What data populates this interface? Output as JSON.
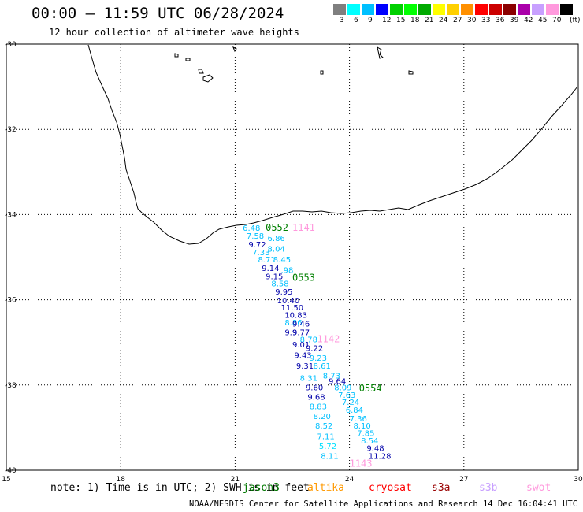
{
  "header": {
    "title": "00:00 – 11:59 UTC 06/28/2024",
    "subtitle": "12 hour collection of altimeter wave heights"
  },
  "legend": {
    "unit": "(ft)",
    "bins": [
      {
        "label": "",
        "color": "#7f7f7f"
      },
      {
        "label": "3",
        "color": "#00ffff"
      },
      {
        "label": "6",
        "color": "#00c0ff"
      },
      {
        "label": "9",
        "color": "#0000ff"
      },
      {
        "label": "12",
        "color": "#00d000"
      },
      {
        "label": "15",
        "color": "#00ff00"
      },
      {
        "label": "18",
        "color": "#00aa00"
      },
      {
        "label": "21",
        "color": "#ffff00"
      },
      {
        "label": "24",
        "color": "#ffd000"
      },
      {
        "label": "27",
        "color": "#ff9000"
      },
      {
        "label": "30",
        "color": "#ff0000"
      },
      {
        "label": "33",
        "color": "#cc0000"
      },
      {
        "label": "36",
        "color": "#8b0000"
      },
      {
        "label": "39",
        "color": "#aa00aa"
      },
      {
        "label": "42",
        "color": "#c8a0ff"
      },
      {
        "label": "45",
        "color": "#ff99dd"
      },
      {
        "label": "70",
        "color": "#000000"
      }
    ]
  },
  "axes": {
    "lat_labels": [
      "-30",
      "-32",
      "-34",
      "-36",
      "-38",
      "-40"
    ],
    "lon_labels": [
      "15",
      "18",
      "21",
      "24",
      "27",
      "30"
    ]
  },
  "map_data": {
    "lon_range": [
      15,
      30
    ],
    "lat_range": [
      -40,
      -30
    ],
    "pass_labels": [
      {
        "text": "0552",
        "lon": 21.8,
        "lat": -34.38,
        "color": "#008000"
      },
      {
        "text": "1141",
        "lon": 22.5,
        "lat": -34.38,
        "color": "#ff99dd"
      },
      {
        "text": "0553",
        "lon": 22.5,
        "lat": -35.55,
        "color": "#008000"
      },
      {
        "text": "1142",
        "lon": 23.15,
        "lat": -37.0,
        "color": "#ff99dd"
      },
      {
        "text": "0554",
        "lon": 24.25,
        "lat": -38.15,
        "color": "#008000"
      },
      {
        "text": "1143",
        "lon": 24.0,
        "lat": -39.92,
        "color": "#ff99dd"
      }
    ],
    "observations": [
      {
        "text": "6.48",
        "lon": 21.2,
        "lat": -34.38,
        "color": "#00c0ff"
      },
      {
        "text": "7.58",
        "lon": 21.3,
        "lat": -34.57,
        "color": "#00c0ff"
      },
      {
        "text": "6.86",
        "lon": 21.85,
        "lat": -34.62,
        "color": "#00c0ff"
      },
      {
        "text": "9.72",
        "lon": 21.35,
        "lat": -34.77,
        "color": "#0000aa"
      },
      {
        "text": "8.04",
        "lon": 21.85,
        "lat": -34.87,
        "color": "#00c0ff"
      },
      {
        "text": "7.33",
        "lon": 21.45,
        "lat": -34.95,
        "color": "#00c0ff"
      },
      {
        "text": "8.71",
        "lon": 21.6,
        "lat": -35.12,
        "color": "#00c0ff"
      },
      {
        "text": "8.45",
        "lon": 22.0,
        "lat": -35.12,
        "color": "#00c0ff"
      },
      {
        "text": "9.14",
        "lon": 21.7,
        "lat": -35.32,
        "color": "#0000aa"
      },
      {
        "text": ".98",
        "lon": 22.2,
        "lat": -35.37,
        "color": "#00c0ff"
      },
      {
        "text": "9.15",
        "lon": 21.8,
        "lat": -35.52,
        "color": "#0000aa"
      },
      {
        "text": "8.58",
        "lon": 21.95,
        "lat": -35.68,
        "color": "#00c0ff"
      },
      {
        "text": "9.95",
        "lon": 22.05,
        "lat": -35.88,
        "color": "#0000aa"
      },
      {
        "text": "10.40",
        "lon": 22.1,
        "lat": -36.08,
        "color": "#0000aa"
      },
      {
        "text": "11.50",
        "lon": 22.2,
        "lat": -36.25,
        "color": "#0000aa"
      },
      {
        "text": "10.83",
        "lon": 22.3,
        "lat": -36.42,
        "color": "#0000aa"
      },
      {
        "text": "8.86",
        "lon": 22.3,
        "lat": -36.6,
        "color": "#00c0ff"
      },
      {
        "text": "9.46",
        "lon": 22.5,
        "lat": -36.63,
        "color": "#0000aa"
      },
      {
        "text": "9.9",
        "lon": 22.3,
        "lat": -36.83,
        "color": "#0000aa"
      },
      {
        "text": "9.77",
        "lon": 22.5,
        "lat": -36.83,
        "color": "#0000aa"
      },
      {
        "text": "8.78",
        "lon": 22.7,
        "lat": -37.0,
        "color": "#00c0ff"
      },
      {
        "text": "9.01",
        "lon": 22.5,
        "lat": -37.12,
        "color": "#0000aa"
      },
      {
        "text": "9.22",
        "lon": 22.85,
        "lat": -37.2,
        "color": "#0000aa"
      },
      {
        "text": "9.43",
        "lon": 22.55,
        "lat": -37.37,
        "color": "#0000aa"
      },
      {
        "text": "9.23",
        "lon": 22.95,
        "lat": -37.43,
        "color": "#00c0ff"
      },
      {
        "text": "9.31",
        "lon": 22.6,
        "lat": -37.62,
        "color": "#0000aa"
      },
      {
        "text": "8.61",
        "lon": 23.05,
        "lat": -37.62,
        "color": "#00c0ff"
      },
      {
        "text": "8.73",
        "lon": 23.3,
        "lat": -37.85,
        "color": "#00c0ff"
      },
      {
        "text": "8.31",
        "lon": 22.7,
        "lat": -37.9,
        "color": "#00c0ff"
      },
      {
        "text": "9.64",
        "lon": 23.45,
        "lat": -37.98,
        "color": "#0000aa"
      },
      {
        "text": "9.60",
        "lon": 22.85,
        "lat": -38.12,
        "color": "#0000aa"
      },
      {
        "text": "8.09",
        "lon": 23.6,
        "lat": -38.12,
        "color": "#00c0ff"
      },
      {
        "text": "7.63",
        "lon": 23.7,
        "lat": -38.3,
        "color": "#00c0ff"
      },
      {
        "text": "9.68",
        "lon": 22.9,
        "lat": -38.35,
        "color": "#0000aa"
      },
      {
        "text": "7.24",
        "lon": 23.8,
        "lat": -38.47,
        "color": "#00c0ff"
      },
      {
        "text": "8.83",
        "lon": 22.95,
        "lat": -38.57,
        "color": "#00c0ff"
      },
      {
        "text": "6.84",
        "lon": 23.9,
        "lat": -38.65,
        "color": "#00c0ff"
      },
      {
        "text": "8.20",
        "lon": 23.05,
        "lat": -38.8,
        "color": "#00c0ff"
      },
      {
        "text": "7.36",
        "lon": 24.0,
        "lat": -38.85,
        "color": "#00c0ff"
      },
      {
        "text": "8.52",
        "lon": 23.1,
        "lat": -39.02,
        "color": "#00c0ff"
      },
      {
        "text": "8.10",
        "lon": 24.1,
        "lat": -39.02,
        "color": "#00c0ff"
      },
      {
        "text": "7.85",
        "lon": 24.2,
        "lat": -39.2,
        "color": "#00c0ff"
      },
      {
        "text": "7.11",
        "lon": 23.15,
        "lat": -39.27,
        "color": "#00c0ff"
      },
      {
        "text": "8.54",
        "lon": 24.3,
        "lat": -39.37,
        "color": "#00c0ff"
      },
      {
        "text": "5.72",
        "lon": 23.2,
        "lat": -39.5,
        "color": "#00e0ff"
      },
      {
        "text": "9.48",
        "lon": 24.45,
        "lat": -39.55,
        "color": "#0000aa"
      },
      {
        "text": "8.11",
        "lon": 23.25,
        "lat": -39.73,
        "color": "#00c0ff"
      },
      {
        "text": "11.28",
        "lon": 24.5,
        "lat": -39.73,
        "color": "#0000aa"
      }
    ]
  },
  "notes": {
    "text": "note:  1) Time is in UTC; 2) SWH is in feet",
    "satellites": [
      {
        "name": "jason3",
        "color": "#007700"
      },
      {
        "name": "altika",
        "color": "#ff9900"
      },
      {
        "name": "cryosat",
        "color": "#ff0000"
      },
      {
        "name": "s3a",
        "color": "#990000"
      },
      {
        "name": "s3b",
        "color": "#c8a0ff"
      },
      {
        "name": "swot",
        "color": "#ff99dd"
      }
    ]
  },
  "footer": {
    "credit": "NOAA/NESDIS Center for Satellite Applications and Research   14 Dec 16:04:41 UTC 2024"
  }
}
